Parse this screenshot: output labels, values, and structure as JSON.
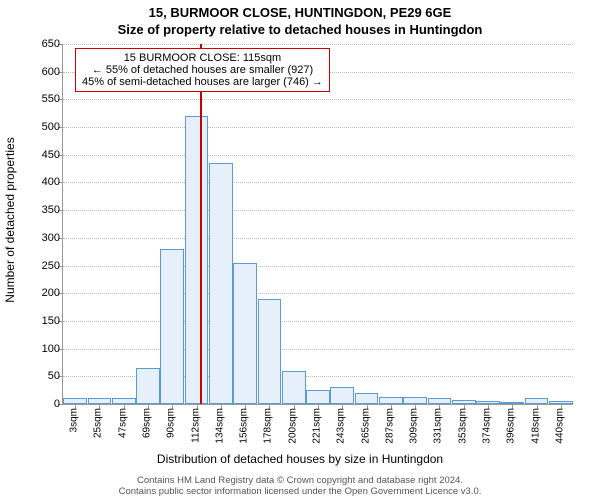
{
  "title_line1": "15, BURMOOR CLOSE, HUNTINGDON, PE29 6GE",
  "title_line2": "Size of property relative to detached houses in Huntingdon",
  "ylabel": "Number of detached properties",
  "xlabel": "Distribution of detached houses by size in Huntingdon",
  "footer_line1": "Contains HM Land Registry data © Crown copyright and database right 2024.",
  "footer_line2": "Contains public sector information licensed under the Open Government Licence v3.0.",
  "chart": {
    "type": "bar",
    "x_categories": [
      "3sqm",
      "25sqm",
      "47sqm",
      "69sqm",
      "90sqm",
      "112sqm",
      "134sqm",
      "156sqm",
      "178sqm",
      "200sqm",
      "221sqm",
      "243sqm",
      "265sqm",
      "287sqm",
      "309sqm",
      "331sqm",
      "353sqm",
      "374sqm",
      "396sqm",
      "418sqm",
      "440sqm"
    ],
    "values": [
      10,
      10,
      10,
      65,
      280,
      520,
      435,
      255,
      190,
      60,
      25,
      30,
      20,
      12,
      12,
      10,
      8,
      5,
      0,
      10,
      5
    ],
    "ylim": [
      0,
      650
    ],
    "ytick_step": 50,
    "bar_fill": "#e6f0fa",
    "bar_border": "#5b9bd5",
    "grid_color": "#bbbbbb",
    "background": "#ffffff"
  },
  "annotation": {
    "line1": "15 BURMOOR CLOSE: 115sqm",
    "line2": "← 55% of detached houses are smaller (927)",
    "line3": "45% of semi-detached houses are larger (746) →",
    "marker_x_value": 115,
    "x_domain_min": 3,
    "x_domain_max": 440,
    "line_color": "#cc0000",
    "box_border": "#cc0000"
  }
}
